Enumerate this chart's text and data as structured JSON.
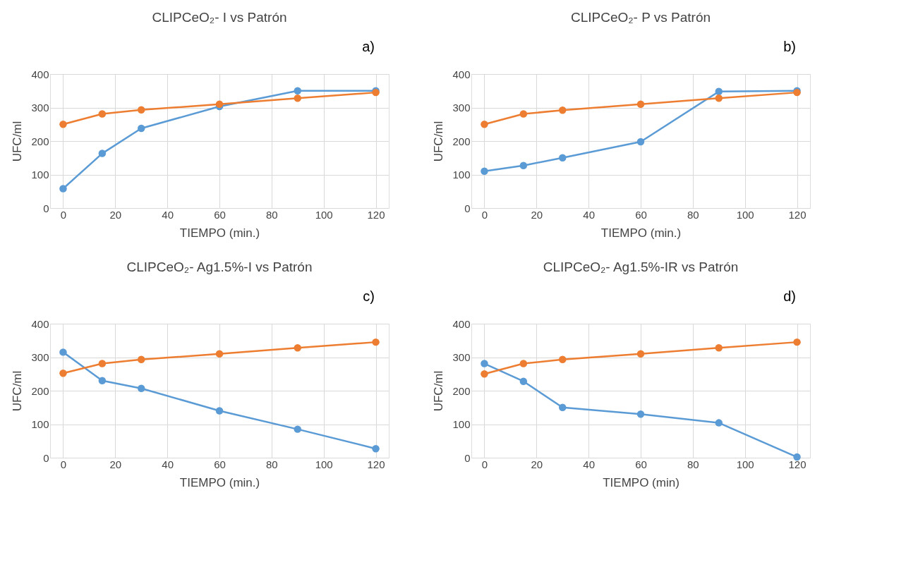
{
  "chart_data": [
    {
      "type": "line",
      "title": "CLIPCeO₂- I vs Patrón",
      "annotations": [
        "a)"
      ],
      "xlabel": "TIEMPO (min.)",
      "ylabel": "UFC/ml",
      "x": [
        0,
        15,
        30,
        60,
        90,
        120
      ],
      "xlim": [
        -5,
        125
      ],
      "xticks": [
        0,
        20,
        40,
        60,
        80,
        100,
        120
      ],
      "ylim": [
        0,
        400
      ],
      "yticks": [
        0,
        100,
        200,
        300,
        400
      ],
      "grid": true,
      "marker": "circle",
      "series": [
        {
          "color": "#5b9bd5",
          "values": [
            58,
            163,
            238,
            303,
            350,
            350
          ]
        },
        {
          "color": "#ed7d31",
          "values": [
            250,
            281,
            293,
            310,
            328,
            345
          ]
        }
      ]
    },
    {
      "type": "line",
      "title": "CLIPCeO₂- P vs Patrón",
      "annotations": [
        "b)"
      ],
      "xlabel": "TIEMPO (min.)",
      "ylabel": "UFC/ml",
      "x": [
        0,
        15,
        30,
        60,
        90,
        120
      ],
      "xlim": [
        -5,
        125
      ],
      "xticks": [
        0,
        20,
        40,
        60,
        80,
        100,
        120
      ],
      "ylim": [
        0,
        400
      ],
      "yticks": [
        0,
        100,
        200,
        300,
        400
      ],
      "grid": true,
      "marker": "circle",
      "series": [
        {
          "color": "#5b9bd5",
          "values": [
            110,
            127,
            150,
            198,
            348,
            350
          ]
        },
        {
          "color": "#ed7d31",
          "values": [
            250,
            281,
            292,
            310,
            328,
            345
          ]
        }
      ]
    },
    {
      "type": "line",
      "title": "CLIPCeO₂- Ag1.5%-I vs Patrón",
      "annotations": [
        "c)"
      ],
      "xlabel": "TIEMPO (min.)",
      "ylabel": "UFC/ml",
      "x": [
        0,
        15,
        30,
        60,
        90,
        120
      ],
      "xlim": [
        -5,
        125
      ],
      "xticks": [
        0,
        20,
        40,
        60,
        80,
        100,
        120
      ],
      "ylim": [
        0,
        400
      ],
      "yticks": [
        0,
        100,
        200,
        300,
        400
      ],
      "grid": true,
      "marker": "circle",
      "series": [
        {
          "color": "#5b9bd5",
          "values": [
            315,
            230,
            207,
            140,
            85,
            27
          ]
        },
        {
          "color": "#ed7d31",
          "values": [
            252,
            281,
            293,
            310,
            328,
            345
          ]
        }
      ]
    },
    {
      "type": "line",
      "title": "CLIPCeO₂- Ag1.5%-IR vs Patrón",
      "annotations": [
        "d)"
      ],
      "xlabel": "TIEMPO (min)",
      "ylabel": "UFC/ml",
      "x": [
        0,
        15,
        30,
        60,
        90,
        120
      ],
      "xlim": [
        -5,
        125
      ],
      "xticks": [
        0,
        20,
        40,
        60,
        80,
        100,
        120
      ],
      "ylim": [
        0,
        400
      ],
      "yticks": [
        0,
        100,
        200,
        300,
        400
      ],
      "grid": true,
      "marker": "circle",
      "series": [
        {
          "color": "#5b9bd5",
          "values": [
            281,
            228,
            150,
            130,
            104,
            2
          ]
        },
        {
          "color": "#ed7d31",
          "values": [
            250,
            281,
            293,
            310,
            328,
            345
          ]
        }
      ]
    }
  ]
}
